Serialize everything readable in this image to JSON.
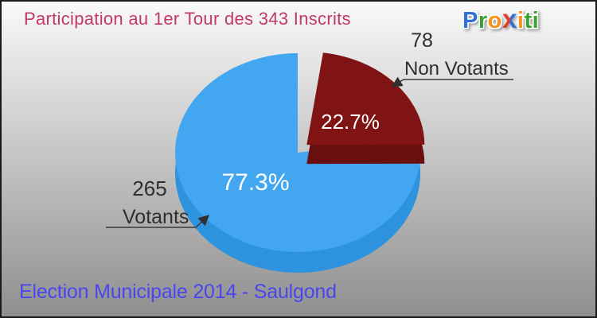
{
  "header": {
    "title": "Participation au 1er Tour des 343 Inscrits"
  },
  "logo": {
    "text": "Proxiti",
    "letters": [
      {
        "char": "P",
        "color": "#2e6fd9"
      },
      {
        "char": "r",
        "color": "#3aa32e"
      },
      {
        "char": "o",
        "color": "#f6921e"
      },
      {
        "char": "x",
        "color": "#e23c28",
        "color2": "#2e6fd9"
      },
      {
        "char": "i",
        "color": "#f6921e"
      },
      {
        "char": "t",
        "color": "#3aa32e"
      },
      {
        "char": "i",
        "color": "#3aa32e"
      }
    ]
  },
  "chart_data": {
    "type": "pie",
    "style": "3d-exploded",
    "title": "Participation au 1er Tour des 343 Inscrits",
    "total": 343,
    "total_label": "343 Inscrits",
    "slices": [
      {
        "label": "Votants",
        "value": 265,
        "pct_label": "77.3%",
        "color": "#42a6f0",
        "depth_color": "#2e93de",
        "exploded": false
      },
      {
        "label": "Non Votants",
        "value": 78,
        "pct_label": "22.7%",
        "color": "#801414",
        "depth_color": "#6a0f10",
        "exploded": true
      }
    ],
    "legend_position": "external-callouts",
    "background": "gray-gradient"
  },
  "footer": {
    "title": "Election Municipale 2014 - Saulgond"
  },
  "colors": {
    "header_title": "#c23a64",
    "footer_title": "#4a46ef",
    "callout_text": "#2f2f2f",
    "pct_text": "#ffffff",
    "callout_line": "#3a3a3a",
    "background_top": "#faf9f9",
    "background_bottom": "#8f8f8f",
    "border": "#1a1a1a"
  }
}
